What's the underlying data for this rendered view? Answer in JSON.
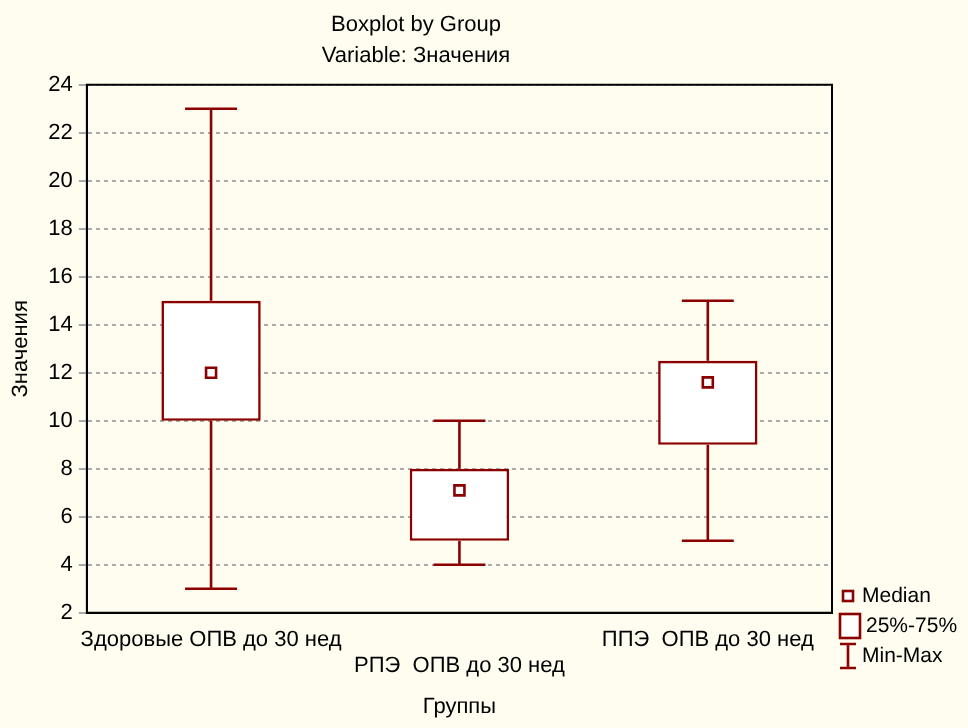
{
  "chart_data": {
    "type": "box",
    "title": "Boxplot by Group",
    "subtitle": "Variable: Значения",
    "xlabel": "Группы",
    "ylabel": "Значения",
    "categories": [
      "Здоровые ОПВ до 30 нед",
      "РПЭ  ОПВ до 30 нед",
      "ППЭ  ОПВ до 30 нед"
    ],
    "series": [
      {
        "color": "#8b0000",
        "boxes": [
          {
            "low": 3,
            "q1": 10,
            "median": 12,
            "q3": 15,
            "high": 23
          },
          {
            "low": 4,
            "q1": 5,
            "median": 7.1,
            "q3": 8,
            "high": 10
          },
          {
            "low": 5,
            "q1": 9,
            "median": 11.6,
            "q3": 12.5,
            "high": 15
          }
        ]
      }
    ],
    "ylim": [
      2,
      24
    ],
    "yticks": [
      2,
      4,
      6,
      8,
      10,
      12,
      14,
      16,
      18,
      20,
      22,
      24
    ],
    "grid": "y",
    "annotations": [
      "Median",
      "25%-75%",
      "Min-Max"
    ]
  }
}
